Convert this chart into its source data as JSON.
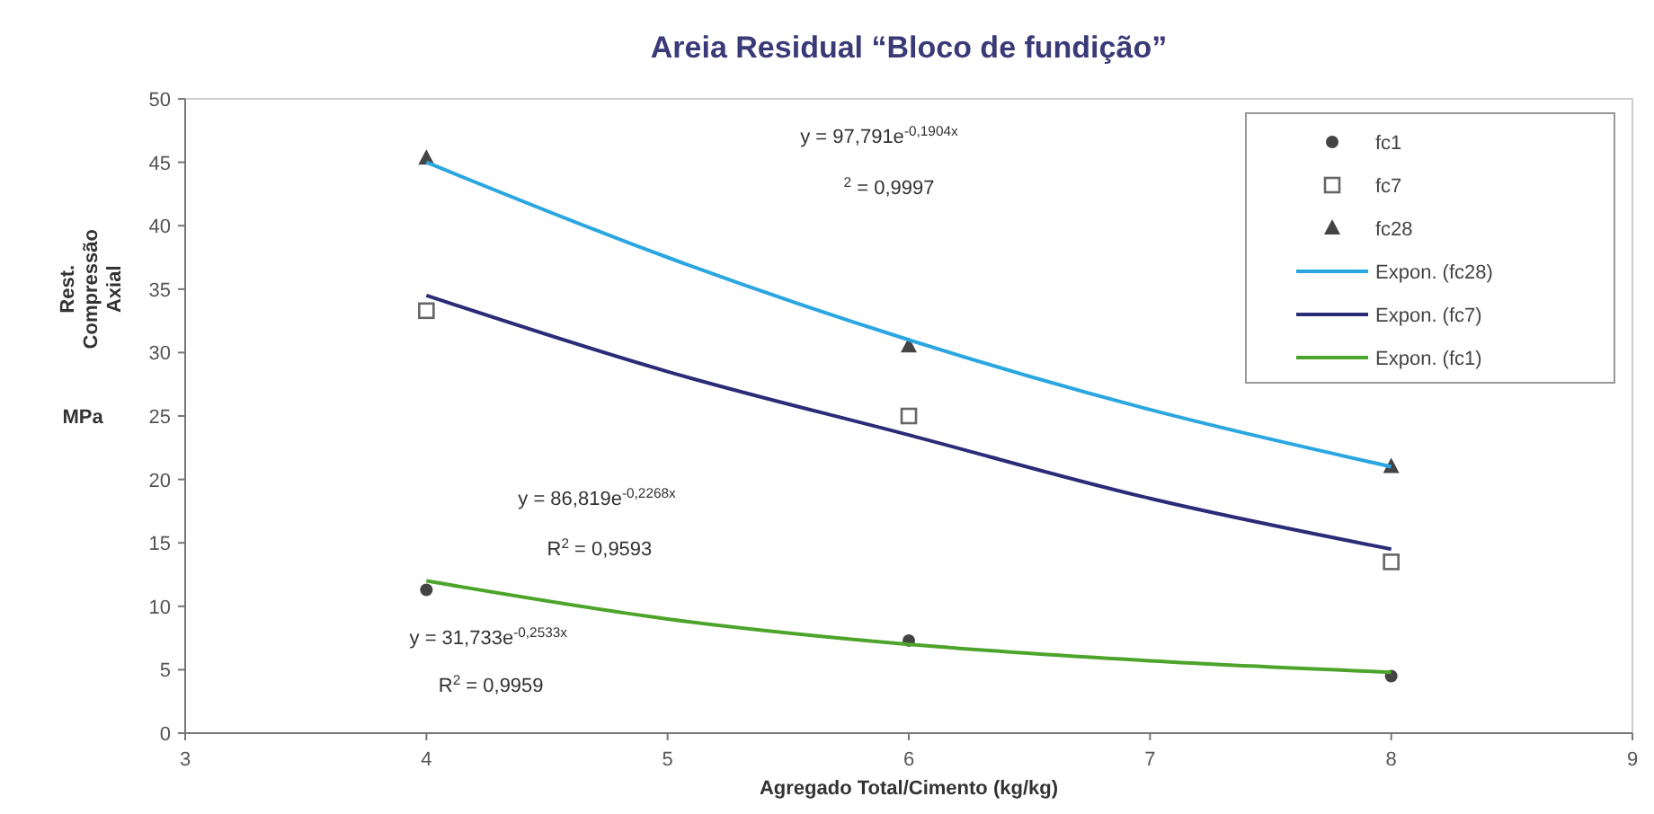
{
  "chart_data": {
    "type": "scatter",
    "title": "Areia  Residual “Bloco de fundição”",
    "xlabel": "Agregado Total/Cimento (kg/kg)",
    "ylabel": "Rest.\nCompressão\nAxial\nMPa",
    "xlim": [
      3,
      9
    ],
    "xticks": [
      3,
      4,
      5,
      6,
      7,
      8,
      9
    ],
    "ylim": [
      0,
      50
    ],
    "yticks": [
      0,
      5,
      10,
      15,
      20,
      25,
      30,
      35,
      40,
      45,
      50
    ],
    "grid": false,
    "legend": "top right",
    "series": [
      {
        "name": "fc1",
        "color": "#444444",
        "marker": "circle",
        "x": [
          4,
          6,
          8
        ],
        "values": [
          11.3,
          7.3,
          4.5
        ]
      },
      {
        "name": "fc7",
        "color": "#666666",
        "marker": "square",
        "x": [
          4,
          6,
          8
        ],
        "values": [
          33.3,
          25,
          13.5
        ]
      },
      {
        "name": "fc28",
        "color": "#444444",
        "marker": "triangle",
        "x": [
          4,
          6,
          8
        ],
        "values": [
          45.3,
          30.5,
          21
        ]
      },
      {
        "name": "Expon. (fc28)",
        "type": "line",
        "color": "#2aa6e0",
        "marker": "none",
        "x": [
          4,
          5,
          6,
          7,
          8
        ],
        "values": [
          45,
          37.5,
          31,
          25.5,
          21
        ]
      },
      {
        "name": "Expon. (fc7)",
        "type": "line",
        "color": "#2b2b78",
        "marker": "none",
        "x": [
          4,
          5,
          6,
          7,
          8
        ],
        "values": [
          34.5,
          28.5,
          23.5,
          18.5,
          14.5
        ]
      },
      {
        "name": "Expon. (fc1)",
        "type": "line",
        "color": "#4ca42a",
        "marker": "none",
        "x": [
          4,
          5,
          6,
          7,
          8
        ],
        "values": [
          12,
          9,
          7,
          5.7,
          4.8
        ]
      }
    ],
    "annotations": [
      "y = 97,791e$^{-0,1904x}$",
      "$^{2}$ = 0,9997",
      "y = 86,819e$^{-0,2268x}$",
      "R$^{2}$ = 0,9593",
      "y = 31,733e$^{-0,2533x}$",
      "R$^{2}$ = 0,9959"
    ]
  }
}
